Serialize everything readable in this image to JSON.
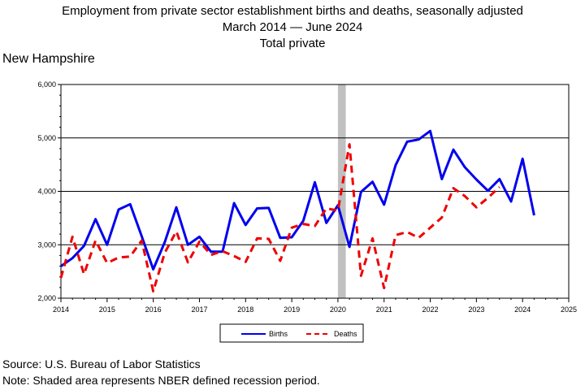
{
  "header": {
    "title_line1": "Employment from private sector establishment births and deaths, seasonally adjusted",
    "title_line2": "March 2014 — June 2024",
    "title_line3": "Total private",
    "region": "New Hampshire"
  },
  "footer": {
    "source": "Source: U.S. Bureau of Labor Statistics",
    "note": "Note: Shaded area represents NBER defined recession period."
  },
  "chart_data": {
    "type": "line",
    "title": "Employment from private sector establishment births and deaths, seasonally adjusted",
    "xlim": [
      2014,
      2025
    ],
    "ylim": [
      2000,
      6000
    ],
    "x_ticks": [
      2014,
      2015,
      2016,
      2017,
      2018,
      2019,
      2020,
      2021,
      2022,
      2023,
      2024,
      2025
    ],
    "y_ticks": [
      2000,
      3000,
      4000,
      5000,
      6000
    ],
    "y_tick_labels": [
      "2,000",
      "3,000",
      "4,000",
      "5,000",
      "6,000"
    ],
    "grid": "horizontal",
    "recession": {
      "start": 2020.0,
      "end": 2020.17
    },
    "legend_position": "bottom",
    "x": [
      2014.0,
      2014.25,
      2014.5,
      2014.75,
      2015.0,
      2015.25,
      2015.5,
      2015.75,
      2016.0,
      2016.25,
      2016.5,
      2016.75,
      2017.0,
      2017.25,
      2017.5,
      2017.75,
      2018.0,
      2018.25,
      2018.5,
      2018.75,
      2019.0,
      2019.25,
      2019.5,
      2019.75,
      2020.0,
      2020.25,
      2020.5,
      2020.75,
      2021.0,
      2021.25,
      2021.5,
      2021.75,
      2022.0,
      2022.25,
      2022.5,
      2022.75,
      2023.0,
      2023.25,
      2023.5,
      2023.75,
      2024.0,
      2024.25
    ],
    "series": [
      {
        "name": "Births",
        "color": "#0000ee",
        "dash": "solid",
        "values": [
          2600,
          2750,
          2980,
          3480,
          3000,
          3660,
          3760,
          3160,
          2540,
          3050,
          3700,
          3000,
          3150,
          2870,
          2870,
          3780,
          3370,
          3680,
          3690,
          3130,
          3140,
          3450,
          4170,
          3410,
          3740,
          2960,
          3990,
          4180,
          3750,
          4490,
          4930,
          4970,
          5130,
          4230,
          4780,
          4450,
          4220,
          4010,
          4230,
          3810,
          4610,
          3550
        ]
      },
      {
        "name": "Deaths",
        "color": "#ee0000",
        "dash": "dashed",
        "values": [
          2380,
          3150,
          2450,
          3080,
          2660,
          2760,
          2780,
          3080,
          2130,
          2850,
          3250,
          2670,
          3060,
          2810,
          2880,
          2790,
          2680,
          3120,
          3110,
          2700,
          3320,
          3390,
          3350,
          3680,
          3640,
          4880,
          2420,
          3120,
          2190,
          3180,
          3240,
          3130,
          3320,
          3510,
          4060,
          3910,
          3700,
          3880,
          4080,
          null,
          null,
          null
        ]
      }
    ]
  }
}
